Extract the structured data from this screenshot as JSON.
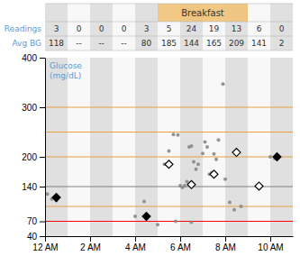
{
  "chart_data": {
    "type": "scatter",
    "y_label_lines": [
      "Glucose",
      "(mg/dL)"
    ],
    "label_color": "#5b9bd5",
    "xlim": [
      0,
      11
    ],
    "xticks": [
      {
        "value": 0,
        "label": "12 AM"
      },
      {
        "value": 2,
        "label": "2 AM"
      },
      {
        "value": 4,
        "label": "4 AM"
      },
      {
        "value": 6,
        "label": "6 AM"
      },
      {
        "value": 8,
        "label": "8 AM"
      },
      {
        "value": 10,
        "label": "10 AM"
      }
    ],
    "ylim": [
      40,
      400
    ],
    "yticks": [
      40,
      70,
      140,
      200,
      300,
      400
    ],
    "grid": false,
    "column_colors": [
      "#e0e0e0",
      "#f8f8f8"
    ],
    "reference_lines": [
      {
        "value": 100,
        "color": "#e8a040"
      },
      {
        "value": 200,
        "color": "#e8a040"
      },
      {
        "value": 250,
        "color": "#e8a040"
      },
      {
        "value": 300,
        "color": "#e8a040"
      },
      {
        "value": 140,
        "color": "#808080"
      },
      {
        "value": 70,
        "color": "#ff0000"
      }
    ],
    "bands": [
      {
        "label": "Breakfast",
        "start": 5,
        "end": 9,
        "color": "#f0c070"
      }
    ],
    "table": {
      "rows": [
        {
          "label": "Readings",
          "values": [
            "3",
            "0",
            "0",
            "0",
            "3",
            "5",
            "24",
            "19",
            "13",
            "6",
            "0"
          ]
        },
        {
          "label": "Avg BG",
          "values": [
            "118",
            "--",
            "--",
            "--",
            "80",
            "185",
            "144",
            "165",
            "209",
            "141",
            "2"
          ]
        }
      ]
    },
    "series": [
      {
        "marker": "circle",
        "color": "#888888",
        "x": [
          0.1,
          0.3,
          0.5,
          4.0,
          4.4,
          4.5,
          5.3,
          5.5,
          5.7,
          5.9,
          6.0,
          6.1,
          6.2,
          6.3,
          6.4,
          6.5,
          6.6,
          6.7,
          6.8,
          7.0,
          7.1,
          7.2,
          7.3,
          7.4,
          7.5,
          7.6,
          7.7,
          7.9,
          8.0,
          8.2,
          8.4,
          8.7,
          5.0,
          5.8,
          6.5,
          10.0,
          10.2
        ],
        "values": [
          125,
          115,
          112,
          80,
          110,
          75,
          185,
          212,
          245,
          244,
          142,
          138,
          142,
          150,
          220,
          222,
          190,
          175,
          185,
          207,
          230,
          220,
          165,
          168,
          206,
          195,
          234,
          347,
          155,
          108,
          93,
          100,
          63,
          70,
          68,
          200,
          197
        ]
      },
      {
        "marker": "diamond",
        "color": "#000000",
        "x": [
          0.5,
          4.5,
          10.3
        ],
        "values": [
          118,
          80,
          200
        ]
      },
      {
        "marker": "open-diamond",
        "color": "#000000",
        "x": [
          5.5,
          6.5,
          7.5,
          8.5,
          9.5
        ],
        "values": [
          185,
          144,
          165,
          209,
          141
        ]
      }
    ]
  }
}
